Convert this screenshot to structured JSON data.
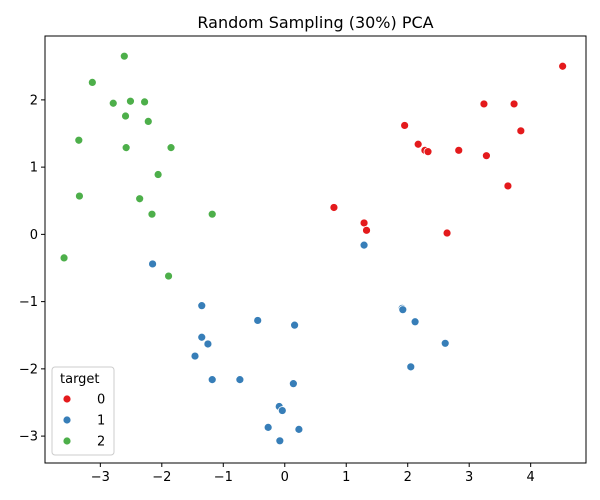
{
  "chart_data": {
    "type": "scatter",
    "title": "Random Sampling (30%) PCA",
    "xlabel": "",
    "ylabel": "",
    "xlim": [
      -3.9,
      4.9
    ],
    "ylim": [
      -3.4,
      2.95
    ],
    "xticks": [
      -3,
      -2,
      -1,
      0,
      1,
      2,
      3,
      4
    ],
    "yticks": [
      -3,
      -2,
      -1,
      0,
      1,
      2
    ],
    "xtick_labels": [
      "−3",
      "−2",
      "−1",
      "0",
      "1",
      "2",
      "3",
      "4"
    ],
    "ytick_labels": [
      "−3",
      "−2",
      "−1",
      "0",
      "1",
      "2"
    ],
    "grid": false,
    "legend": {
      "title": "target",
      "position": "bottom-left"
    },
    "series": [
      {
        "name": "0",
        "color": "#e41a1c",
        "points": [
          [
            4.52,
            2.5
          ],
          [
            3.24,
            1.94
          ],
          [
            3.73,
            1.94
          ],
          [
            3.84,
            1.54
          ],
          [
            1.95,
            1.62
          ],
          [
            2.17,
            1.34
          ],
          [
            2.28,
            1.25
          ],
          [
            2.33,
            1.23
          ],
          [
            2.83,
            1.25
          ],
          [
            3.28,
            1.17
          ],
          [
            3.63,
            0.72
          ],
          [
            0.8,
            0.4
          ],
          [
            1.29,
            0.17
          ],
          [
            1.33,
            0.06
          ],
          [
            2.64,
            0.02
          ]
        ]
      },
      {
        "name": "1",
        "color": "#377eb8",
        "points": [
          [
            1.29,
            -0.16
          ],
          [
            -2.15,
            -0.44
          ],
          [
            -1.35,
            -1.06
          ],
          [
            1.91,
            -1.1
          ],
          [
            1.92,
            -1.12
          ],
          [
            2.12,
            -1.3
          ],
          [
            -0.44,
            -1.28
          ],
          [
            0.16,
            -1.35
          ],
          [
            2.61,
            -1.62
          ],
          [
            -1.35,
            -1.53
          ],
          [
            -1.25,
            -1.63
          ],
          [
            -1.46,
            -1.81
          ],
          [
            2.05,
            -1.97
          ],
          [
            -1.18,
            -2.16
          ],
          [
            -0.73,
            -2.16
          ],
          [
            0.14,
            -2.22
          ],
          [
            -0.09,
            -2.56
          ],
          [
            -0.04,
            -2.62
          ],
          [
            -0.27,
            -2.87
          ],
          [
            0.23,
            -2.9
          ],
          [
            -0.08,
            -3.07
          ]
        ]
      },
      {
        "name": "2",
        "color": "#4daf4a",
        "points": [
          [
            -2.61,
            2.65
          ],
          [
            -3.13,
            2.26
          ],
          [
            -2.79,
            1.95
          ],
          [
            -2.51,
            1.98
          ],
          [
            -2.28,
            1.97
          ],
          [
            -2.59,
            1.76
          ],
          [
            -2.22,
            1.68
          ],
          [
            -3.35,
            1.4
          ],
          [
            -2.58,
            1.29
          ],
          [
            -1.85,
            1.29
          ],
          [
            -2.06,
            0.89
          ],
          [
            -3.34,
            0.57
          ],
          [
            -2.36,
            0.53
          ],
          [
            -2.16,
            0.3
          ],
          [
            -1.18,
            0.3
          ],
          [
            -3.59,
            -0.35
          ],
          [
            -1.89,
            -0.62
          ]
        ]
      }
    ]
  }
}
